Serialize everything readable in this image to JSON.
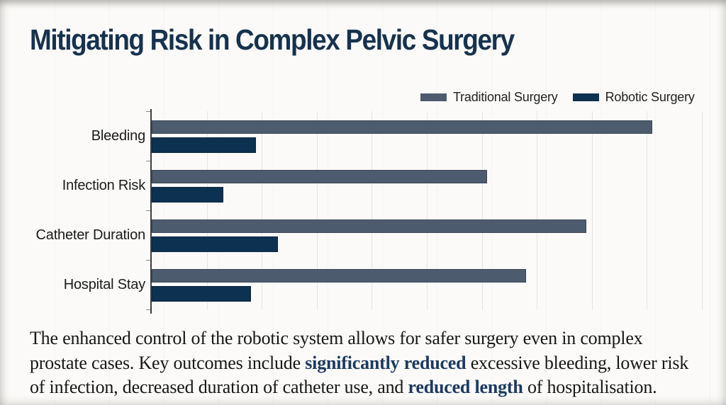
{
  "page": {
    "title": "Mitigating Risk in Complex Pelvic Surgery"
  },
  "legend": {
    "items": [
      {
        "label": "Traditional Surgery",
        "color": "#4d5b6e"
      },
      {
        "label": "Robotic Surgery",
        "color": "#0d3150"
      }
    ]
  },
  "chart_data": {
    "type": "bar",
    "orientation": "horizontal",
    "title": "",
    "xlabel": "",
    "ylabel": "",
    "categories": [
      "Bleeding",
      "Infection Risk",
      "Catheter Duration",
      "Hospital Stay"
    ],
    "series": [
      {
        "name": "Traditional Surgery",
        "color": "#4d5b6e",
        "values": [
          91,
          61,
          79,
          68
        ]
      },
      {
        "name": "Robotic Surgery",
        "color": "#0d3150",
        "values": [
          19,
          13,
          23,
          18
        ]
      }
    ],
    "xlim": [
      0,
      100
    ],
    "grid": true,
    "gridline_count": 10,
    "axis_tick_labels_shown": false,
    "legend_position": "top-right"
  },
  "caption": {
    "lines": [
      [
        {
          "t": "The enhanced control of the robotic system allows for safer surgery even in complex",
          "b": false
        }
      ],
      [
        {
          "t": "prostate cases. Key outcomes include ",
          "b": false
        },
        {
          "t": "significantly reduced",
          "b": true
        },
        {
          "t": " excessive bleeding, lower risk",
          "b": false
        }
      ],
      [
        {
          "t": "of infection, decreased duration of catheter use, and ",
          "b": false
        },
        {
          "t": "reduced length",
          "b": true
        },
        {
          "t": " of hospitalisation.",
          "b": false
        }
      ]
    ]
  },
  "colors": {
    "background": "#fbfaf8",
    "title_text": "#16324e",
    "traditional_bar": "#4d5b6e",
    "robotic_bar": "#0d3150",
    "highlight_text": "#1c3a61",
    "body_text": "#171717",
    "gridline": "#e3e5e1",
    "axis": "#3a3d40"
  }
}
